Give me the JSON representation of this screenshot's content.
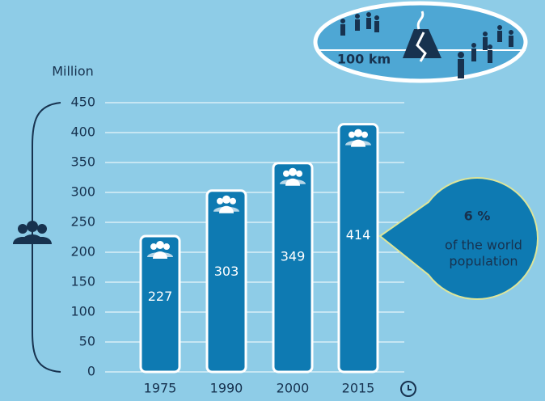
{
  "chart_data": {
    "type": "bar",
    "y_label": "Million",
    "categories": [
      "1975",
      "1990",
      "2000",
      "2015"
    ],
    "values": [
      227,
      303,
      349,
      414
    ],
    "color": "#0e7ab2",
    "ylim": [
      0,
      450
    ],
    "yticks": [
      0,
      50,
      100,
      150,
      200,
      250,
      300,
      350,
      400,
      450
    ],
    "grid": true,
    "callout": {
      "value": "6 %",
      "lines": [
        "of the world",
        "population"
      ]
    },
    "inset_label": "100 km"
  }
}
